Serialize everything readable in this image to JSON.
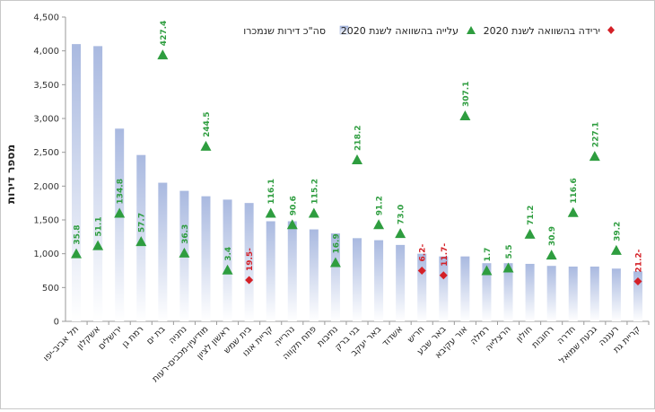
{
  "chart_data": {
    "type": "bar",
    "ylabel": "מספר דירות",
    "ylim": [
      0,
      4500
    ],
    "yticks": [
      "0",
      "500",
      "1,000",
      "1,500",
      "2,000",
      "2,500",
      "3,000",
      "3,500",
      "4,000",
      "4,500"
    ],
    "ytick_values": [
      0,
      500,
      1000,
      1500,
      2000,
      2500,
      3000,
      3500,
      4000,
      4500
    ],
    "grid": false,
    "legend_position": "top",
    "legend": {
      "bars": "סה\"כ דירות שנמכרו",
      "increase": "עלייה בהשוואה לשנת 2020",
      "decrease": "ירידה בהשוואה לשנת 2020"
    },
    "colors": {
      "bar_top": "#a9b9e0",
      "bar_bottom": "#ffffff",
      "increase": "#2e9d3f",
      "decrease": "#d42027",
      "increase_label": "#2e9d3f",
      "decrease_label": "#d42027"
    },
    "categories": [
      "תל אביב-יפו",
      "אשקלון",
      "ירושלים",
      "רמת גן",
      "בת ים",
      "נתניה",
      "מודיעין-מכבים-רעות",
      "ראשון לציון",
      "בית שמש",
      "קריית אונו",
      "נהרייה",
      "פתח תקווה",
      "נתיבות",
      "בני ברק",
      "באר יעקב",
      "אשדוד",
      "חריש",
      "באר שבע",
      "אור עקיבא",
      "רמלה",
      "הרצלייה",
      "חולון",
      "רחובות",
      "חדרה",
      "גבעת שמואל",
      "רעננה",
      "קריית גת"
    ],
    "series": [
      {
        "key": "total",
        "name": "סה\"כ דירות שנמכרו",
        "values": [
          4100,
          4070,
          2850,
          2460,
          2050,
          1930,
          1850,
          1800,
          1750,
          1480,
          1480,
          1360,
          1300,
          1230,
          1200,
          1130,
          1000,
          960,
          960,
          860,
          860,
          850,
          820,
          810,
          810,
          780,
          740
        ]
      },
      {
        "key": "marker",
        "values": [
          1000,
          1120,
          1600,
          1180,
          3940,
          1010,
          2590,
          760,
          610,
          1600,
          1430,
          1600,
          870,
          2390,
          1430,
          1300,
          750,
          680,
          3040,
          750,
          790,
          1290,
          980,
          1610,
          2440,
          1050,
          590
        ]
      }
    ],
    "change_pct": [
      35.8,
      51.1,
      134.8,
      57.7,
      427.4,
      36.3,
      244.5,
      3.4,
      -19.5,
      116.1,
      90.6,
      115.2,
      16.9,
      218.2,
      91.2,
      73.0,
      -6.2,
      -11.7,
      307.1,
      1.7,
      5.5,
      71.2,
      30.9,
      116.6,
      227.1,
      39.2,
      -21.2
    ],
    "change_labels": [
      "35.8",
      "51.1",
      "134.8",
      "57.7",
      "427.4",
      "36.3",
      "244.5",
      "3.4",
      "19.5-",
      "116.1",
      "90.6",
      "115.2",
      "16.9",
      "218.2",
      "91.2",
      "73.0",
      "6.2-",
      "11.7-",
      "307.1",
      "1.7",
      "5.5",
      "71.2",
      "30.9",
      "116.6",
      "227.1",
      "39.2",
      "21.2-"
    ]
  }
}
